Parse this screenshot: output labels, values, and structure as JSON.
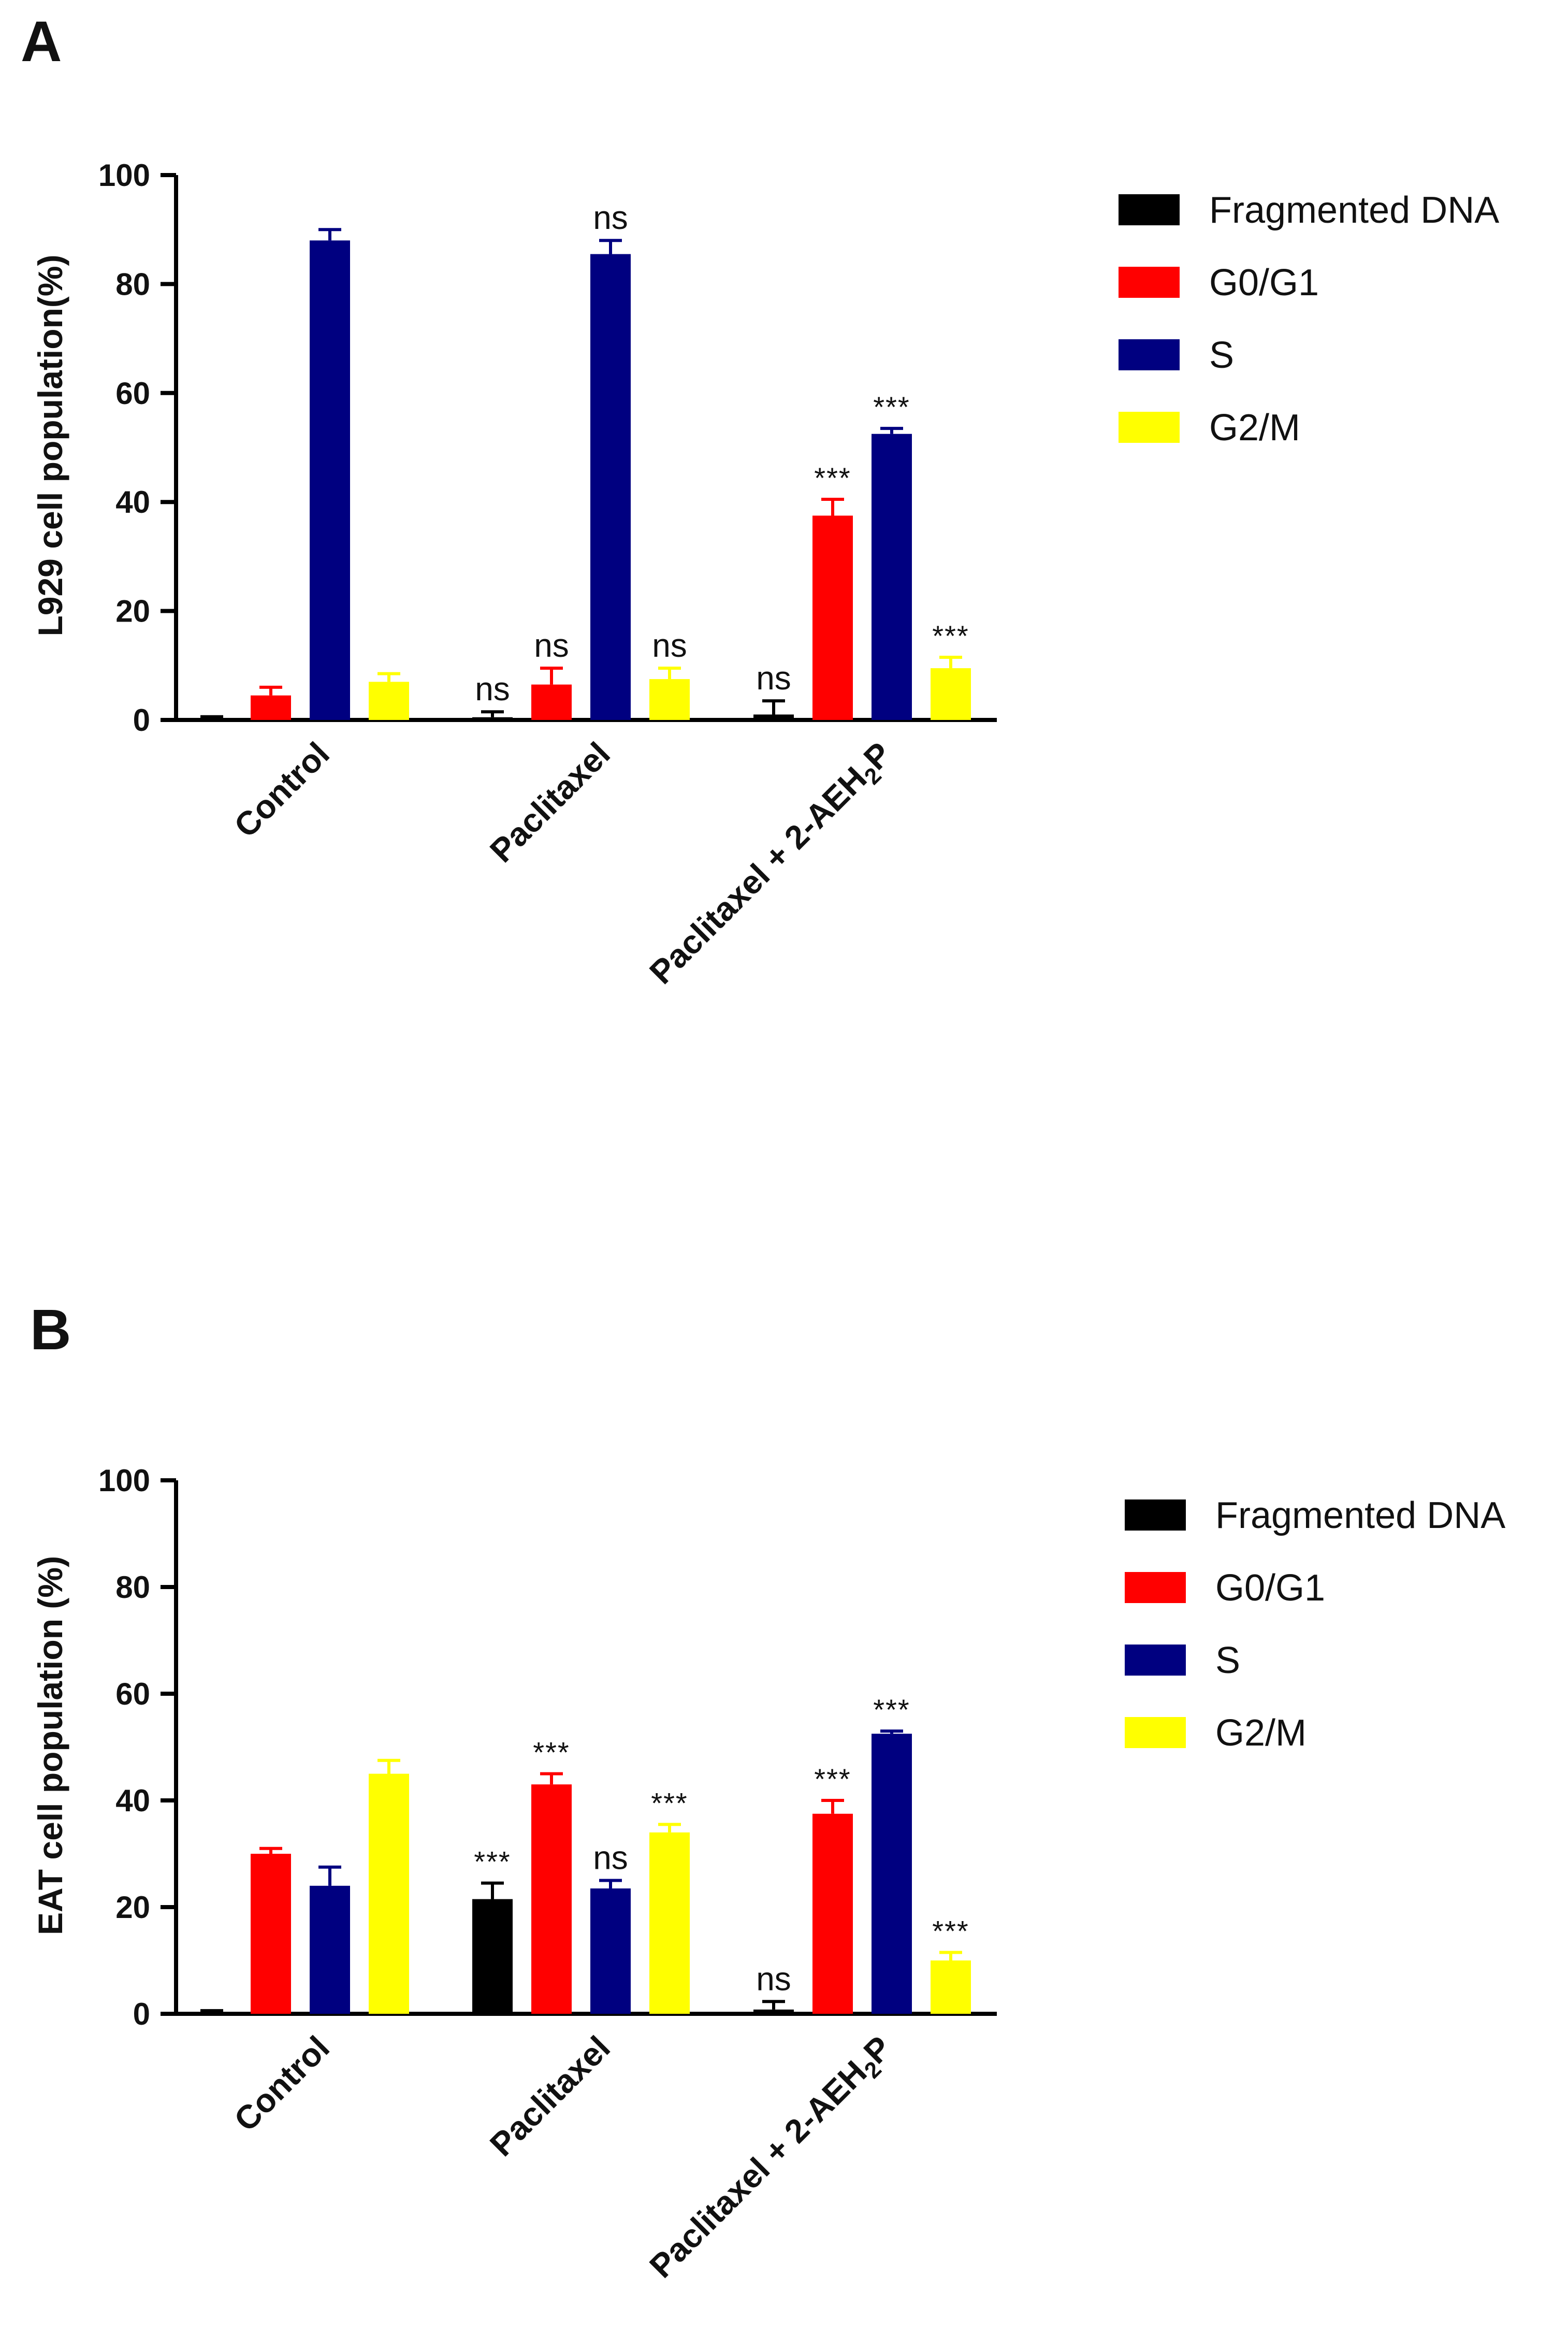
{
  "colors": {
    "Fragmented DNA": "#000000",
    "G0/G1": "#ff0000",
    "S": "#000080",
    "G2/M": "#ffff00"
  },
  "chart_data": [
    {
      "panel": "A",
      "type": "bar",
      "ylabel": "L929 cell population(%)",
      "ylim": [
        0,
        100
      ],
      "yticks": [
        0,
        20,
        40,
        60,
        80,
        100
      ],
      "categories": [
        "Control",
        "Paclitaxel",
        "Paclitaxel + 2-AEH2P"
      ],
      "category_labels": [
        {
          "main": "Control"
        },
        {
          "main": "Paclitaxel"
        },
        {
          "main": "Paclitaxel + 2-AEH",
          "sub": "2",
          "tail": "P"
        }
      ],
      "series": [
        {
          "name": "Fragmented DNA",
          "values": [
            0.3,
            0.5,
            1.0
          ],
          "errors": [
            0.3,
            1.0,
            2.5
          ],
          "annotations": [
            "",
            "ns",
            "ns"
          ]
        },
        {
          "name": "G0/G1",
          "values": [
            4.5,
            6.5,
            37.5
          ],
          "errors": [
            1.5,
            3.0,
            3.0
          ],
          "annotations": [
            "",
            "ns",
            "***"
          ]
        },
        {
          "name": "S",
          "values": [
            88,
            85.5,
            52.5
          ],
          "errors": [
            2.0,
            2.5,
            1.0
          ],
          "annotations": [
            "",
            "ns",
            "***"
          ]
        },
        {
          "name": "G2/M",
          "values": [
            7.0,
            7.5,
            9.5
          ],
          "errors": [
            1.5,
            2.0,
            2.0
          ],
          "annotations": [
            "",
            "ns",
            "***"
          ]
        }
      ]
    },
    {
      "panel": "B",
      "type": "bar",
      "ylabel": "EAT cell population (%)",
      "ylim": [
        0,
        100
      ],
      "yticks": [
        0,
        20,
        40,
        60,
        80,
        100
      ],
      "categories": [
        "Control",
        "Paclitaxel",
        "Paclitaxel + 2-AEH2P"
      ],
      "category_labels": [
        {
          "main": "Control"
        },
        {
          "main": "Paclitaxel"
        },
        {
          "main": "Paclitaxel + 2-AEH",
          "sub": "2",
          "tail": "P"
        }
      ],
      "series": [
        {
          "name": "Fragmented DNA",
          "values": [
            0.3,
            21.5,
            0.8
          ],
          "errors": [
            0.3,
            3.0,
            1.5
          ],
          "annotations": [
            "",
            "***",
            "ns"
          ]
        },
        {
          "name": "G0/G1",
          "values": [
            30.0,
            43.0,
            37.5
          ],
          "errors": [
            1.0,
            2.0,
            2.5
          ],
          "annotations": [
            "",
            "***",
            "***"
          ]
        },
        {
          "name": "S",
          "values": [
            24.0,
            23.5,
            52.5
          ],
          "errors": [
            3.5,
            1.5,
            0.5
          ],
          "annotations": [
            "",
            "ns",
            "***"
          ]
        },
        {
          "name": "G2/M",
          "values": [
            45.0,
            34.0,
            10.0
          ],
          "errors": [
            2.5,
            1.5,
            1.5
          ],
          "annotations": [
            "",
            "***",
            "***"
          ]
        }
      ]
    }
  ]
}
